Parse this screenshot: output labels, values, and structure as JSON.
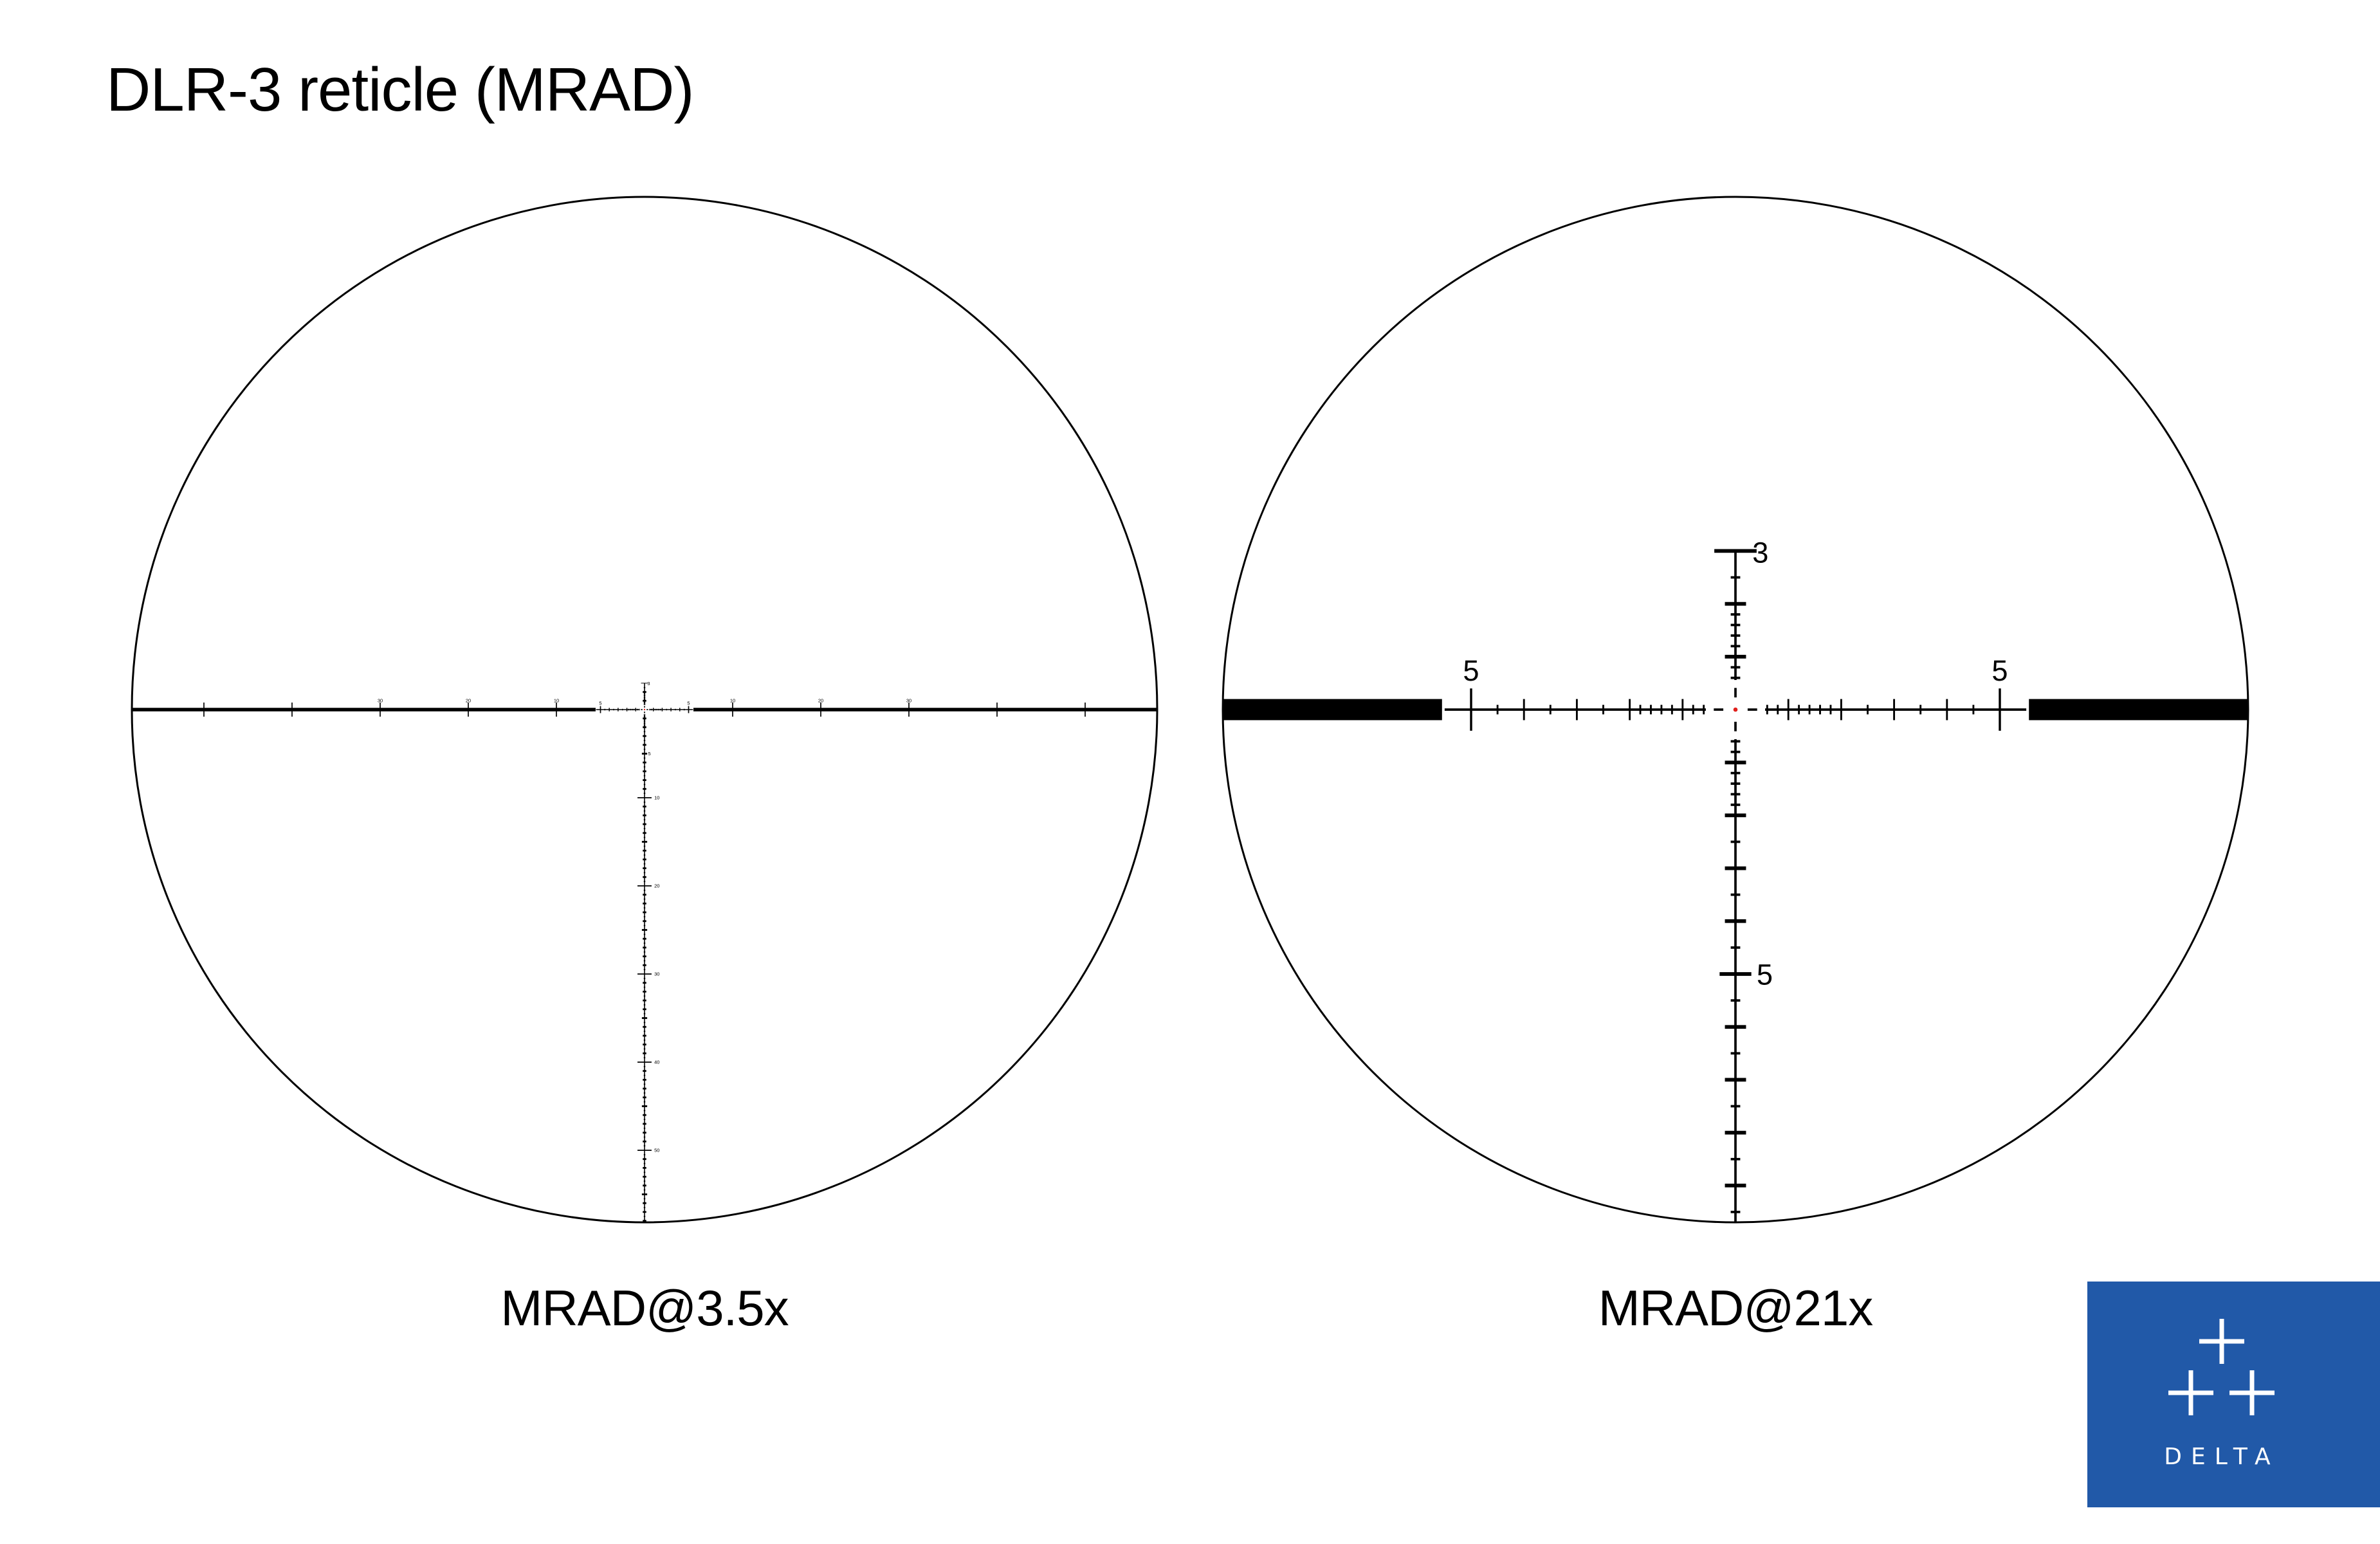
{
  "title": "DLR-3 reticle (MRAD)",
  "views": [
    {
      "label": "MRAD@3.5x",
      "magnification": 3.5
    },
    {
      "label": "MRAD@21x",
      "magnification": 21
    }
  ],
  "reticle": {
    "unit": "MRAD",
    "horizontal_labels": [
      5,
      10,
      20,
      30
    ],
    "vertical_top_label": 3,
    "vertical_labels": [
      5,
      10,
      20,
      30,
      40,
      50
    ],
    "center_dot_color": "#e0201c",
    "line_color": "#000000"
  },
  "logo": {
    "text": "DELTA",
    "background": "#2159a8",
    "foreground": "#ffffff"
  }
}
